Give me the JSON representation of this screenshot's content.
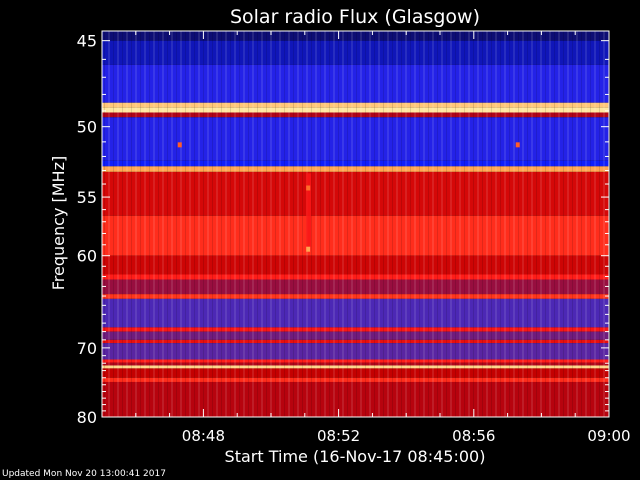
{
  "chart_data": {
    "type": "heatmap",
    "title": "Solar radio Flux (Glasgow)",
    "xlabel": "Start Time (16-Nov-17 08:45:00)",
    "ylabel": "Frequency [MHz]",
    "x_ticks": [
      "08:48",
      "08:52",
      "08:56",
      "09:00"
    ],
    "x_tick_minutes": [
      3,
      7,
      11,
      15
    ],
    "xlim_minutes": [
      0,
      15
    ],
    "y_ticks": [
      "45",
      "50",
      "55",
      "60",
      "70",
      "80"
    ],
    "y_tick_values": [
      45,
      50,
      55,
      60,
      70,
      80
    ],
    "ylim": [
      44.5,
      80
    ],
    "y_scale": "reciprocal",
    "y_inverted": true,
    "colormap": [
      "#000000",
      "#10108a",
      "#1020ff",
      "#5028b0",
      "#c00000",
      "#ff1818",
      "#ff8a30",
      "#ffe8a0"
    ],
    "frequency_bands": [
      {
        "from": 44.5,
        "to": 45.0,
        "level": 0.12
      },
      {
        "from": 45.0,
        "to": 46.3,
        "level": 0.2
      },
      {
        "from": 46.3,
        "to": 48.5,
        "level": 0.33
      },
      {
        "from": 48.5,
        "to": 48.8,
        "level": 0.95
      },
      {
        "from": 48.8,
        "to": 49.1,
        "level": 1.0
      },
      {
        "from": 49.1,
        "to": 49.4,
        "level": 0.55
      },
      {
        "from": 49.4,
        "to": 52.3,
        "level": 0.33
      },
      {
        "from": 52.3,
        "to": 52.7,
        "level": 0.28
      },
      {
        "from": 52.7,
        "to": 53.1,
        "level": 0.9
      },
      {
        "from": 53.1,
        "to": 56.5,
        "level": 0.62
      },
      {
        "from": 56.5,
        "to": 60.0,
        "level": 0.74
      },
      {
        "from": 60.0,
        "to": 61.8,
        "level": 0.6
      },
      {
        "from": 61.8,
        "to": 62.3,
        "level": 0.72
      },
      {
        "from": 62.3,
        "to": 63.8,
        "level": 0.52
      },
      {
        "from": 63.8,
        "to": 64.3,
        "level": 0.75
      },
      {
        "from": 64.3,
        "to": 67.5,
        "level": 0.42
      },
      {
        "from": 67.5,
        "to": 68.0,
        "level": 0.7
      },
      {
        "from": 68.0,
        "to": 69.0,
        "level": 0.47
      },
      {
        "from": 69.0,
        "to": 69.4,
        "level": 0.66
      },
      {
        "from": 69.4,
        "to": 71.5,
        "level": 0.44
      },
      {
        "from": 71.5,
        "to": 71.9,
        "level": 0.72
      },
      {
        "from": 71.9,
        "to": 72.3,
        "level": 0.55
      },
      {
        "from": 72.3,
        "to": 72.7,
        "level": 0.97
      },
      {
        "from": 72.7,
        "to": 74.0,
        "level": 0.58
      },
      {
        "from": 74.0,
        "to": 74.6,
        "level": 0.74
      },
      {
        "from": 74.6,
        "to": 80.0,
        "level": 0.56
      }
    ],
    "burst_events": [
      {
        "time_minutes": 6.1,
        "freq_from": 53.2,
        "freq_to": 59.6,
        "level": 0.7
      }
    ],
    "spot_events": [
      {
        "time_minutes": 2.3,
        "freq": 51.2,
        "level": 0.8
      },
      {
        "time_minutes": 12.3,
        "freq": 51.2,
        "level": 0.8
      },
      {
        "time_minutes": 6.1,
        "freq": 54.3,
        "level": 0.82
      },
      {
        "time_minutes": 6.1,
        "freq": 59.4,
        "level": 0.9
      }
    ],
    "grid": false
  },
  "footer": {
    "updated": "Updated Mon Nov 20 13:00:41 2017"
  }
}
